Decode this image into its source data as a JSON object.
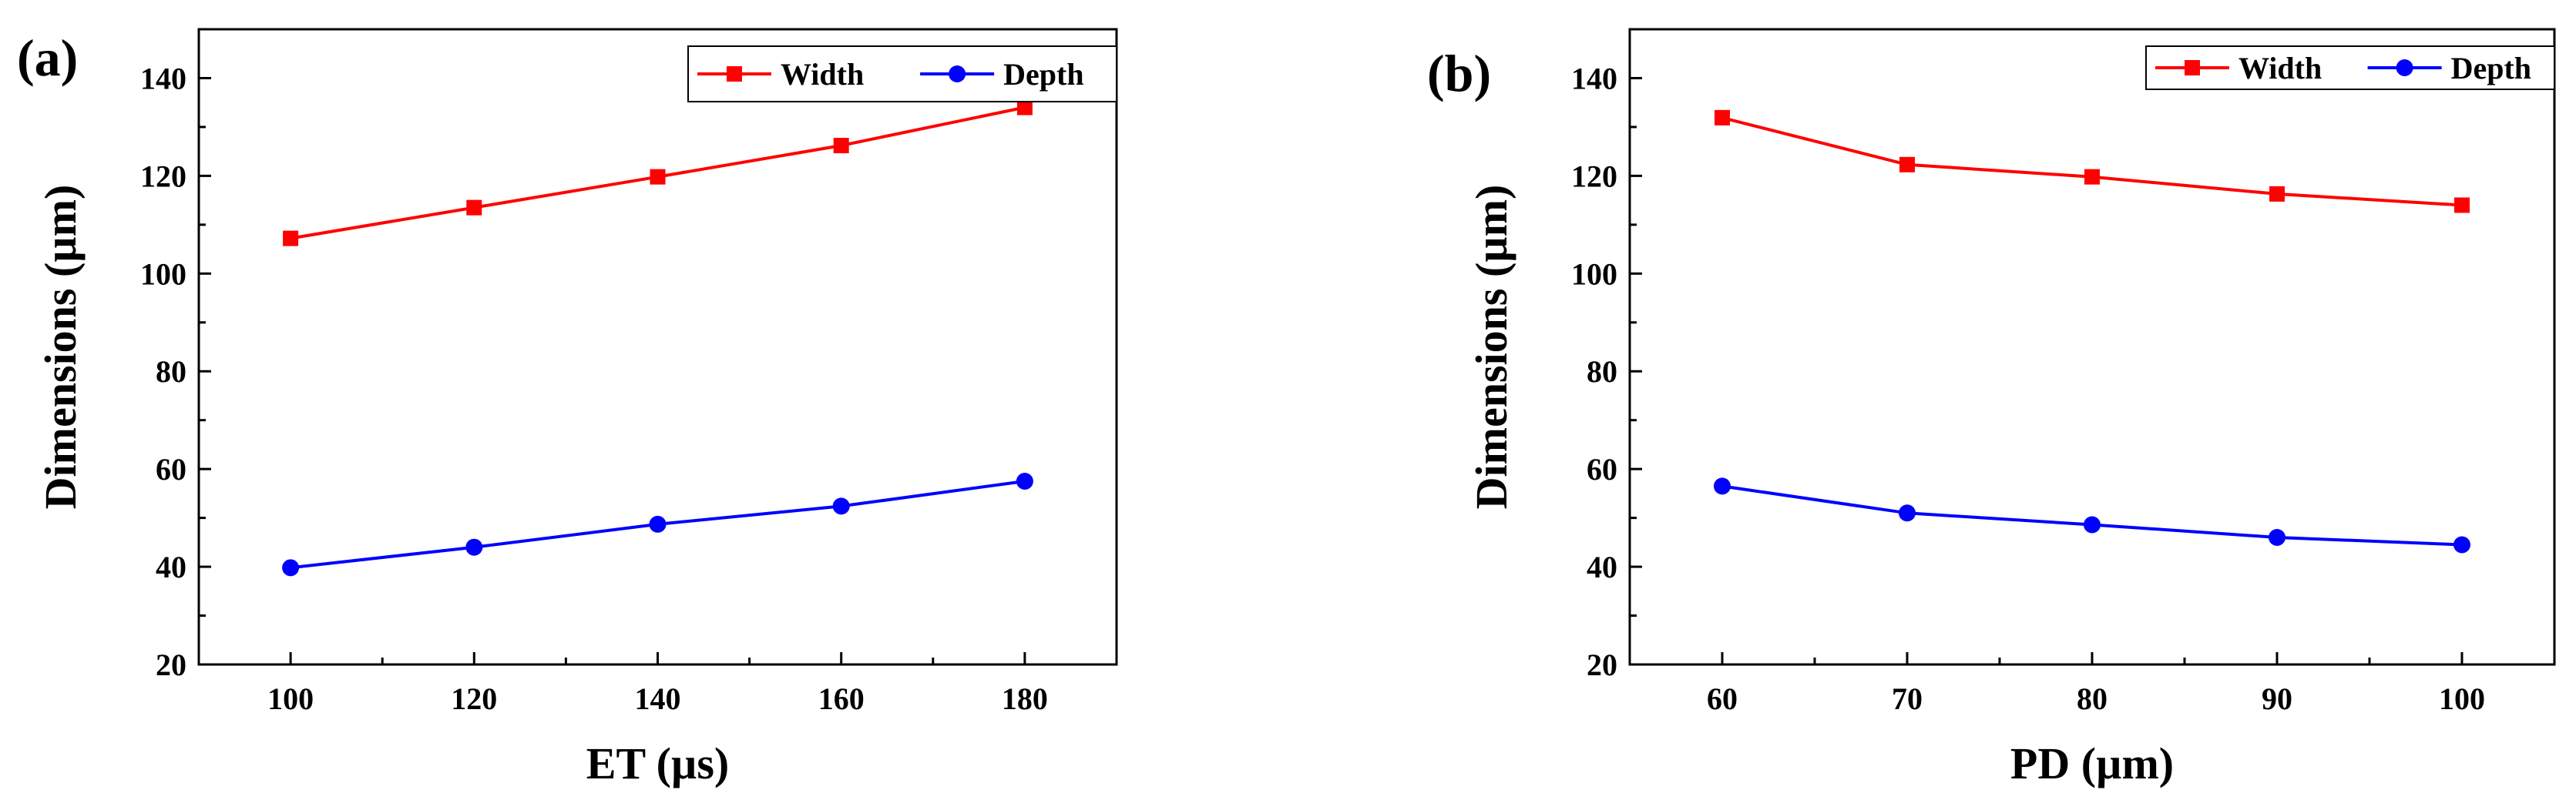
{
  "chart_data": [
    {
      "type": "line",
      "panel_label": "(a)",
      "xlabel": "ET (µs)",
      "ylabel": "Dimensions (µm)",
      "xlim": [
        90,
        190
      ],
      "ylim": [
        20,
        150
      ],
      "x": [
        100,
        120,
        140,
        160,
        180
      ],
      "xticks": [
        100,
        120,
        140,
        160,
        180
      ],
      "yticks": [
        20,
        40,
        60,
        80,
        100,
        120,
        140
      ],
      "xticklabels": [
        "100",
        "120",
        "140",
        "160",
        "180"
      ],
      "yticklabels": [
        "20",
        "40",
        "60",
        "80",
        "100",
        "120",
        "140"
      ],
      "legend_position": "top-right",
      "series": [
        {
          "name": "Width",
          "color": "#ff0000",
          "marker": "square",
          "values": [
            107.2,
            113.5,
            119.8,
            126.2,
            134.0
          ]
        },
        {
          "name": "Depth",
          "color": "#0000ff",
          "marker": "circle",
          "values": [
            39.8,
            44.0,
            48.7,
            52.4,
            57.5
          ]
        }
      ]
    },
    {
      "type": "line",
      "panel_label": "(b)",
      "xlabel": "PD (µm)",
      "ylabel": "Dimensions (µm)",
      "xlim": [
        55,
        105
      ],
      "ylim": [
        20,
        150
      ],
      "x": [
        60,
        70,
        80,
        90,
        100
      ],
      "xticks": [
        60,
        70,
        80,
        90,
        100
      ],
      "yticks": [
        20,
        40,
        60,
        80,
        100,
        120,
        140
      ],
      "xticklabels": [
        "60",
        "70",
        "80",
        "90",
        "100"
      ],
      "yticklabels": [
        "20",
        "40",
        "60",
        "80",
        "100",
        "120",
        "140"
      ],
      "legend_position": "top-right",
      "series": [
        {
          "name": "Width",
          "color": "#ff0000",
          "marker": "square",
          "values": [
            131.9,
            122.3,
            119.8,
            116.3,
            114.0
          ]
        },
        {
          "name": "Depth",
          "color": "#0000ff",
          "marker": "circle",
          "values": [
            56.5,
            51.0,
            48.6,
            46.0,
            44.5
          ]
        }
      ]
    }
  ]
}
